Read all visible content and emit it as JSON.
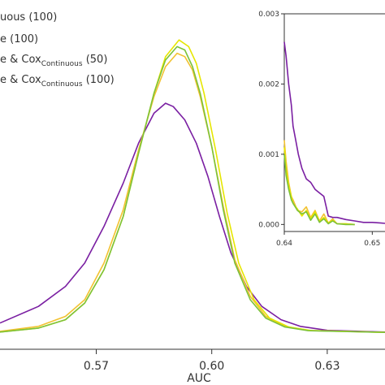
{
  "chart_data": [
    {
      "type": "line",
      "xlabel": "AUC",
      "xlim": [
        0.545,
        0.645
      ],
      "ylim": [
        0,
        1.0
      ],
      "xticks": [
        "0.57",
        "0.60",
        "0.63"
      ],
      "xtick_values": [
        0.57,
        0.6,
        0.63
      ],
      "legend": {
        "placement": "top-left",
        "entries": [
          {
            "main": "uous (100)",
            "sub": "",
            "tail": ""
          },
          {
            "main": "e (100)",
            "sub": "",
            "tail": ""
          },
          {
            "main": "e & Cox",
            "sub": "Continuous",
            "tail": " (50)"
          },
          {
            "main": "e & Cox",
            "sub": "Continuous",
            "tail": " (100)"
          }
        ]
      },
      "series": [
        {
          "color": "#7a1fa2",
          "x": [
            0.545,
            0.555,
            0.562,
            0.567,
            0.572,
            0.577,
            0.581,
            0.585,
            0.588,
            0.59,
            0.593,
            0.596,
            0.599,
            0.602,
            0.605,
            0.609,
            0.613,
            0.618,
            0.623,
            0.63,
            0.645
          ],
          "y": [
            0.03,
            0.08,
            0.14,
            0.21,
            0.32,
            0.45,
            0.57,
            0.66,
            0.69,
            0.68,
            0.64,
            0.57,
            0.47,
            0.35,
            0.24,
            0.14,
            0.08,
            0.04,
            0.02,
            0.008,
            0.003
          ]
        },
        {
          "color": "#f2c230",
          "x": [
            0.545,
            0.555,
            0.562,
            0.567,
            0.572,
            0.577,
            0.581,
            0.585,
            0.588,
            0.591,
            0.593,
            0.595,
            0.597,
            0.6,
            0.603,
            0.606,
            0.61,
            0.614,
            0.619,
            0.625,
            0.645
          ],
          "y": [
            0.005,
            0.02,
            0.05,
            0.1,
            0.21,
            0.37,
            0.55,
            0.71,
            0.8,
            0.84,
            0.83,
            0.79,
            0.71,
            0.56,
            0.38,
            0.22,
            0.11,
            0.05,
            0.02,
            0.008,
            0.002
          ]
        },
        {
          "color": "#e6e600",
          "x": [
            0.545,
            0.555,
            0.562,
            0.567,
            0.572,
            0.577,
            0.581,
            0.585,
            0.588,
            0.5915,
            0.594,
            0.596,
            0.598,
            0.601,
            0.604,
            0.607,
            0.611,
            0.615,
            0.62,
            0.626,
            0.645
          ],
          "y": [
            0.003,
            0.015,
            0.04,
            0.09,
            0.19,
            0.35,
            0.54,
            0.72,
            0.83,
            0.88,
            0.86,
            0.81,
            0.72,
            0.55,
            0.36,
            0.21,
            0.1,
            0.045,
            0.018,
            0.007,
            0.002
          ]
        },
        {
          "color": "#7cc23a",
          "x": [
            0.545,
            0.555,
            0.562,
            0.567,
            0.572,
            0.577,
            0.581,
            0.585,
            0.588,
            0.591,
            0.593,
            0.595,
            0.597,
            0.6,
            0.603,
            0.606,
            0.61,
            0.614,
            0.619,
            0.625,
            0.645
          ],
          "y": [
            0.003,
            0.015,
            0.04,
            0.09,
            0.19,
            0.35,
            0.54,
            0.72,
            0.82,
            0.86,
            0.85,
            0.8,
            0.72,
            0.56,
            0.37,
            0.21,
            0.1,
            0.045,
            0.018,
            0.007,
            0.002
          ]
        }
      ]
    },
    {
      "type": "line",
      "role": "inset",
      "xlim": [
        0.64,
        0.652
      ],
      "ylim": [
        -0.0001,
        0.003
      ],
      "xticks": [
        "0.64",
        "0.65"
      ],
      "xtick_values": [
        0.64,
        0.65
      ],
      "yticks": [
        "0.000",
        "0.001",
        "0.002",
        "0.003"
      ],
      "ytick_values": [
        0.0,
        0.001,
        0.002,
        0.003
      ],
      "series": [
        {
          "color": "#7a1fa2",
          "x": [
            0.64,
            0.6402,
            0.6405,
            0.6408,
            0.641,
            0.6413,
            0.6416,
            0.642,
            0.6425,
            0.643,
            0.6435,
            0.644,
            0.6445,
            0.645,
            0.6455,
            0.646,
            0.647,
            0.648,
            0.649,
            0.65,
            0.651,
            0.652
          ],
          "y": [
            0.0026,
            0.0024,
            0.002,
            0.0017,
            0.0014,
            0.0012,
            0.001,
            0.0008,
            0.00065,
            0.0006,
            0.0005,
            0.00045,
            0.0004,
            0.00012,
            0.0001,
            0.0001,
            7e-05,
            5e-05,
            3e-05,
            3e-05,
            2e-05,
            1e-05
          ]
        },
        {
          "color": "#f2c230",
          "x": [
            0.64,
            0.6402,
            0.6405,
            0.6408,
            0.641,
            0.6415,
            0.642,
            0.6425,
            0.643,
            0.6435,
            0.644,
            0.6445,
            0.645,
            0.6455,
            0.646,
            0.647,
            0.648
          ],
          "y": [
            0.0012,
            0.0009,
            0.0006,
            0.0004,
            0.00035,
            0.0002,
            0.00018,
            0.00025,
            0.0001,
            0.0002,
            5e-05,
            0.00015,
            2e-05,
            8e-05,
            1e-05,
            1e-05,
            0.0
          ]
        },
        {
          "color": "#e6e600",
          "x": [
            0.64,
            0.6402,
            0.6405,
            0.6408,
            0.641,
            0.6415,
            0.642,
            0.6425,
            0.643,
            0.6435,
            0.644,
            0.6445,
            0.645,
            0.6455,
            0.646,
            0.647,
            0.648
          ],
          "y": [
            0.0011,
            0.0008,
            0.00055,
            0.0004,
            0.0003,
            0.00022,
            0.00012,
            0.0002,
            8e-05,
            0.00018,
            4e-05,
            0.0001,
            2e-05,
            6e-05,
            1e-05,
            1e-05,
            0.0
          ]
        },
        {
          "color": "#7cc23a",
          "x": [
            0.64,
            0.6402,
            0.6405,
            0.6408,
            0.641,
            0.6415,
            0.642,
            0.6425,
            0.643,
            0.6435,
            0.644,
            0.6445,
            0.645,
            0.6455,
            0.646,
            0.647,
            0.648
          ],
          "y": [
            0.001,
            0.0007,
            0.0005,
            0.00035,
            0.0003,
            0.0002,
            0.00015,
            0.00018,
            6e-05,
            0.00015,
            3e-05,
            8e-05,
            1e-05,
            5e-05,
            1e-05,
            0.0,
            0.0
          ]
        }
      ]
    }
  ]
}
